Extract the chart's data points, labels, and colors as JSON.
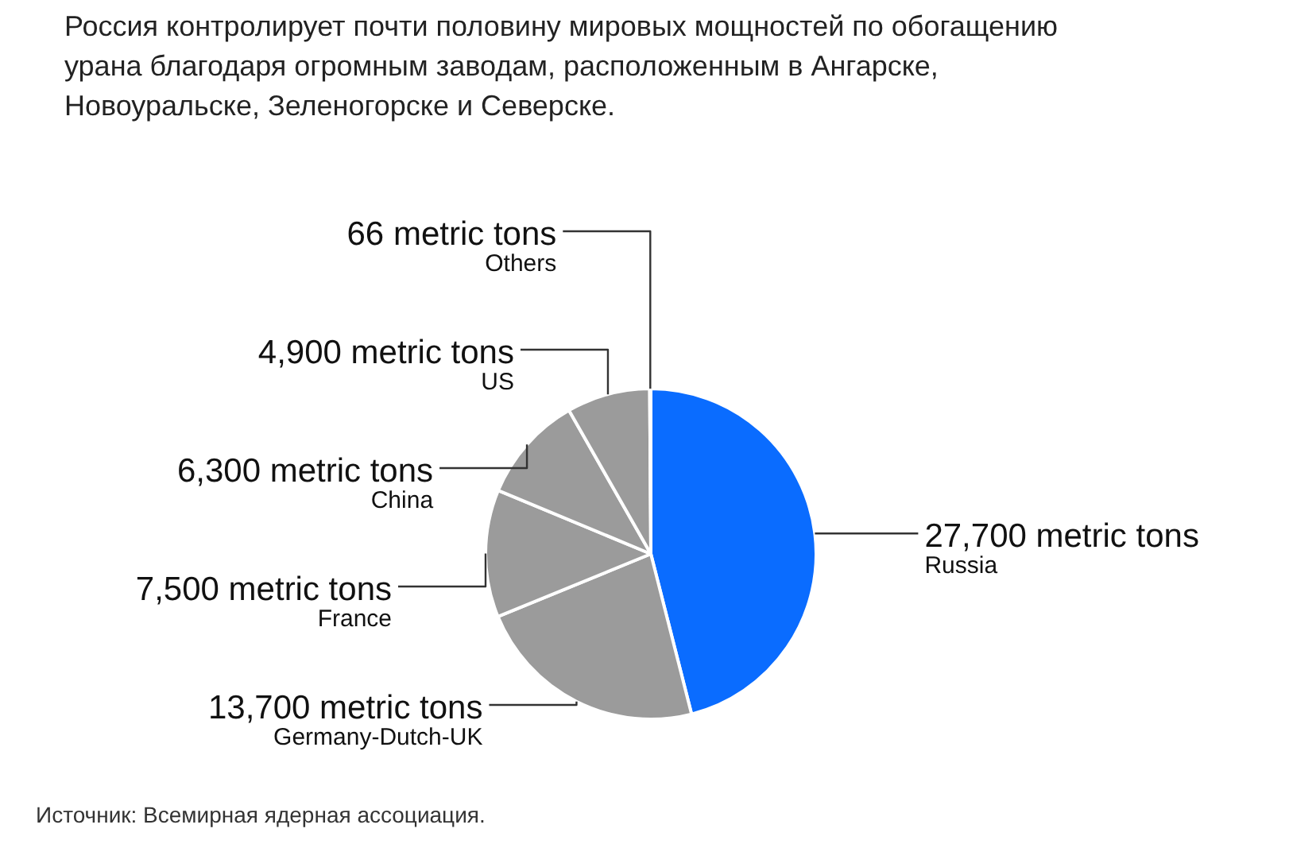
{
  "chart_data": {
    "type": "pie",
    "title": "Россия контролирует почти половину мировых мощностей по обогащению урана благодаря огромным заводам, расположенным в Ангарске, Новоуральске, Зеленогорске и Северске.",
    "categories": [
      "Russia",
      "Germany-Dutch-UK",
      "France",
      "China",
      "US",
      "Others"
    ],
    "values": [
      27700,
      13700,
      7500,
      6300,
      4900,
      66
    ],
    "value_labels": [
      "27,700 metric tons",
      "13,700 metric tons",
      "7,500 metric tons",
      "6,300 metric tons",
      "4,900 metric tons",
      "66 metric tons"
    ],
    "colors": [
      "#0a6cff",
      "#9b9b9b",
      "#9b9b9b",
      "#9b9b9b",
      "#9b9b9b",
      "#9b9b9b"
    ],
    "annotations": [
      "Источник: Всемирная ядерная ассоциация."
    ]
  }
}
